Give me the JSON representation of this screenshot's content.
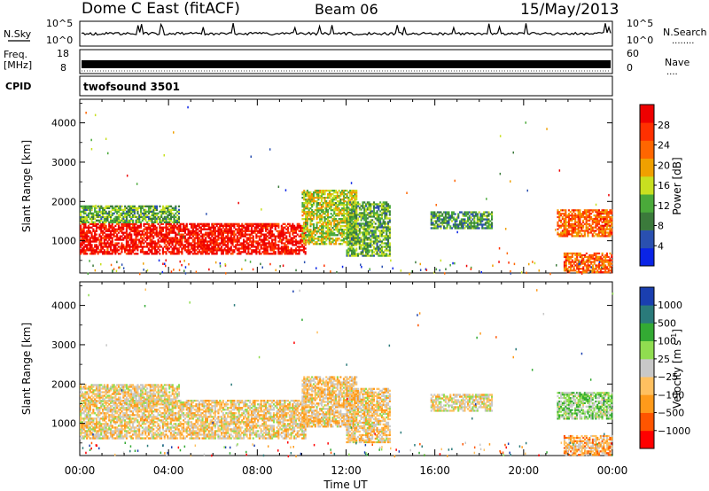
{
  "header": {
    "site": "Dome C East (fitACF)",
    "beam": "Beam 06",
    "date": "15/May/2013"
  },
  "nsky": {
    "left_label": "N.Sky",
    "y_ticks": [
      "10^5",
      "10^0"
    ],
    "right_ticks": [
      "10^5",
      "10^0"
    ],
    "right_label": "N.Search",
    "right_label_line": "........"
  },
  "freq": {
    "label_line1": "Freq.",
    "label_line2": "[MHz]",
    "y_ticks": [
      "18",
      "8"
    ],
    "right_ticks": [
      "60",
      "0"
    ],
    "right_label": "Nave",
    "right_label_line": "...."
  },
  "cpid": {
    "label": "CPID",
    "program": "twofsound 3501"
  },
  "x_axis": {
    "title": "Time UT",
    "ticks": [
      "00:00",
      "04:00",
      "08:00",
      "12:00",
      "16:00",
      "20:00",
      "00:00"
    ]
  },
  "colors": {
    "power_scale": [
      "#0a24e6",
      "#2a50b0",
      "#3b7a3b",
      "#4aaa3a",
      "#c8e020",
      "#f0a000",
      "#ff6600",
      "#ff3000",
      "#ee0000"
    ],
    "velocity_scale": [
      "#ff0000",
      "#ff5500",
      "#ff9a1a",
      "#ffc060",
      "#c8c8c8",
      "#90dd50",
      "#33aa33",
      "#2a7a7a",
      "#1a3fb0"
    ]
  },
  "chart_data": [
    {
      "type": "heatmap",
      "title": "",
      "ylabel": "Slant Range [km]",
      "xlabel": "",
      "x_range": [
        "00:00",
        "24:00"
      ],
      "ylim": [
        180,
        4600
      ],
      "y_ticks": [
        1000,
        2000,
        3000,
        4000
      ],
      "colorbar": {
        "label": "Power [dB]",
        "ticks": [
          "28",
          "24",
          "20",
          "16",
          "12",
          "8",
          "4"
        ],
        "range": [
          0,
          32
        ]
      },
      "regions": [
        {
          "t0": 0.0,
          "t1": 10.2,
          "r0": 650,
          "r1": 1450,
          "value": 30
        },
        {
          "t0": 0.0,
          "t1": 4.5,
          "r0": 1450,
          "r1": 1900,
          "value": 12
        },
        {
          "t0": 10.0,
          "t1": 12.5,
          "r0": 900,
          "r1": 2300,
          "value": 16
        },
        {
          "t0": 12.0,
          "t1": 14.0,
          "r0": 600,
          "r1": 2000,
          "value": 12
        },
        {
          "t0": 15.8,
          "t1": 18.6,
          "r0": 1300,
          "r1": 1750,
          "value": 10
        },
        {
          "t0": 21.5,
          "t1": 24.0,
          "r0": 1100,
          "r1": 1800,
          "value": 24
        },
        {
          "t0": 21.8,
          "t1": 24.0,
          "r0": 180,
          "r1": 700,
          "value": 24
        }
      ]
    },
    {
      "type": "heatmap",
      "title": "",
      "ylabel": "Slant Range [km]",
      "xlabel": "Time UT",
      "x_range": [
        "00:00",
        "24:00"
      ],
      "ylim": [
        180,
        4600
      ],
      "y_ticks": [
        1000,
        2000,
        3000,
        4000
      ],
      "colorbar": {
        "label": "Velocity [m s",
        "label_sup": "-1",
        "label_end": "]",
        "ticks": [
          "1000",
          "500",
          "100",
          "25",
          "−25",
          "−100",
          "−500",
          "−1000"
        ],
        "range": [
          -1000,
          1000
        ]
      },
      "regions": [
        {
          "t0": 0.0,
          "t1": 10.2,
          "r0": 600,
          "r1": 1600,
          "value": -150
        },
        {
          "t0": 0.0,
          "t1": 4.5,
          "r0": 1500,
          "r1": 2000,
          "value": -120
        },
        {
          "t0": 10.0,
          "t1": 12.5,
          "r0": 900,
          "r1": 2200,
          "value": -200
        },
        {
          "t0": 12.0,
          "t1": 14.0,
          "r0": 500,
          "r1": 1900,
          "value": -150
        },
        {
          "t0": 15.8,
          "t1": 18.6,
          "r0": 1300,
          "r1": 1750,
          "value": -60
        },
        {
          "t0": 21.5,
          "t1": 24.0,
          "r0": 1100,
          "r1": 1800,
          "value": 200
        },
        {
          "t0": 21.8,
          "t1": 24.0,
          "r0": 180,
          "r1": 700,
          "value": -300
        }
      ]
    }
  ]
}
